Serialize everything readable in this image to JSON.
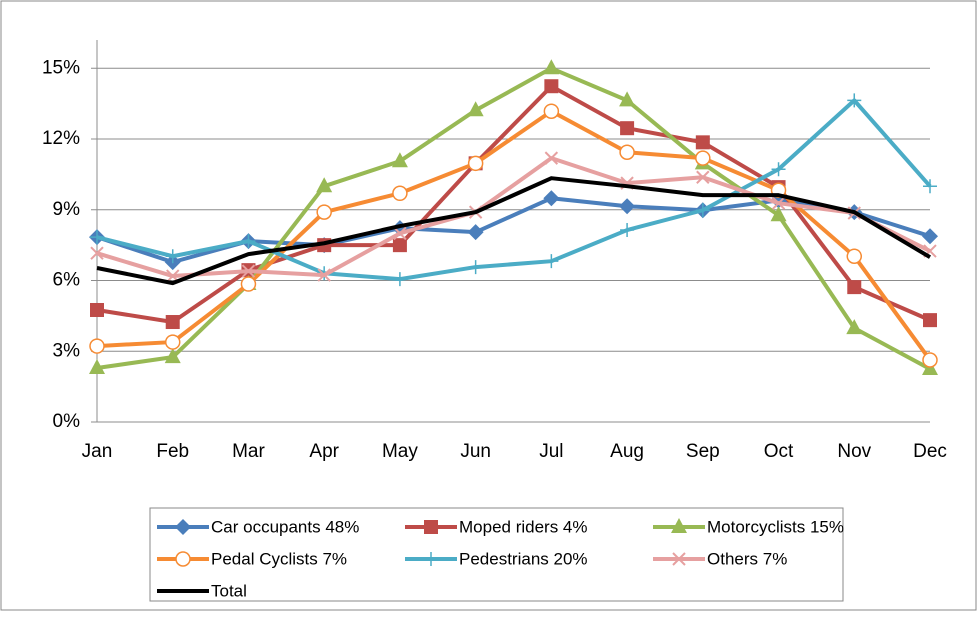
{
  "chart_data": {
    "type": "line",
    "categories": [
      "Jan",
      "Feb",
      "Mar",
      "Apr",
      "May",
      "Jun",
      "Jul",
      "Aug",
      "Sep",
      "Oct",
      "Nov",
      "Dec"
    ],
    "ylim": [
      0,
      16.2
    ],
    "yticks": [
      {
        "value": 0,
        "label": "0%"
      },
      {
        "value": 3,
        "label": "3%"
      },
      {
        "value": 6,
        "label": "6%"
      },
      {
        "value": 9,
        "label": "9%"
      },
      {
        "value": 12,
        "label": "12%"
      },
      {
        "value": 15,
        "label": "15%"
      }
    ],
    "grid": true,
    "legend": "bottom",
    "series": [
      {
        "name": "Car occupants 48%",
        "color": "#4a7ebb",
        "marker": "diamond",
        "values": [
          7.84,
          6.78,
          7.67,
          7.5,
          8.22,
          8.05,
          9.49,
          9.15,
          8.98,
          9.4,
          8.9,
          7.88
        ]
      },
      {
        "name": "Moped riders 4%",
        "color": "#be4b48",
        "marker": "square",
        "values": [
          4.75,
          4.24,
          6.44,
          7.5,
          7.5,
          10.97,
          14.24,
          12.46,
          11.86,
          9.96,
          5.72,
          4.32
        ]
      },
      {
        "name": "Motorcyclists 15%",
        "color": "#98b954",
        "marker": "triangle",
        "values": [
          2.29,
          2.75,
          5.85,
          10.0,
          11.06,
          13.22,
          15.0,
          13.64,
          10.97,
          8.77,
          3.98,
          2.25
        ]
      },
      {
        "name": "Pedal Cyclists 7%",
        "color": "#f68b33",
        "marker": "circle",
        "values": [
          3.22,
          3.39,
          5.85,
          8.9,
          9.7,
          10.97,
          13.18,
          11.44,
          11.19,
          9.83,
          7.03,
          2.63
        ]
      },
      {
        "name": "Pedestrians 20%",
        "color": "#4bacc6",
        "marker": "plus",
        "values": [
          7.84,
          7.03,
          7.67,
          6.31,
          6.06,
          6.57,
          6.82,
          8.14,
          8.98,
          10.72,
          13.64,
          10.0
        ]
      },
      {
        "name": "Others 7%",
        "color": "#e6a0a0",
        "marker": "x",
        "values": [
          7.16,
          6.19,
          6.4,
          6.23,
          8.0,
          8.9,
          11.19,
          10.13,
          10.38,
          9.28,
          8.86,
          7.25
        ]
      },
      {
        "name": "Total",
        "color": "#000000",
        "marker": "none",
        "values": [
          6.53,
          5.89,
          7.12,
          7.58,
          8.31,
          8.9,
          10.34,
          10.0,
          9.62,
          9.62,
          8.9,
          6.99
        ]
      }
    ]
  }
}
